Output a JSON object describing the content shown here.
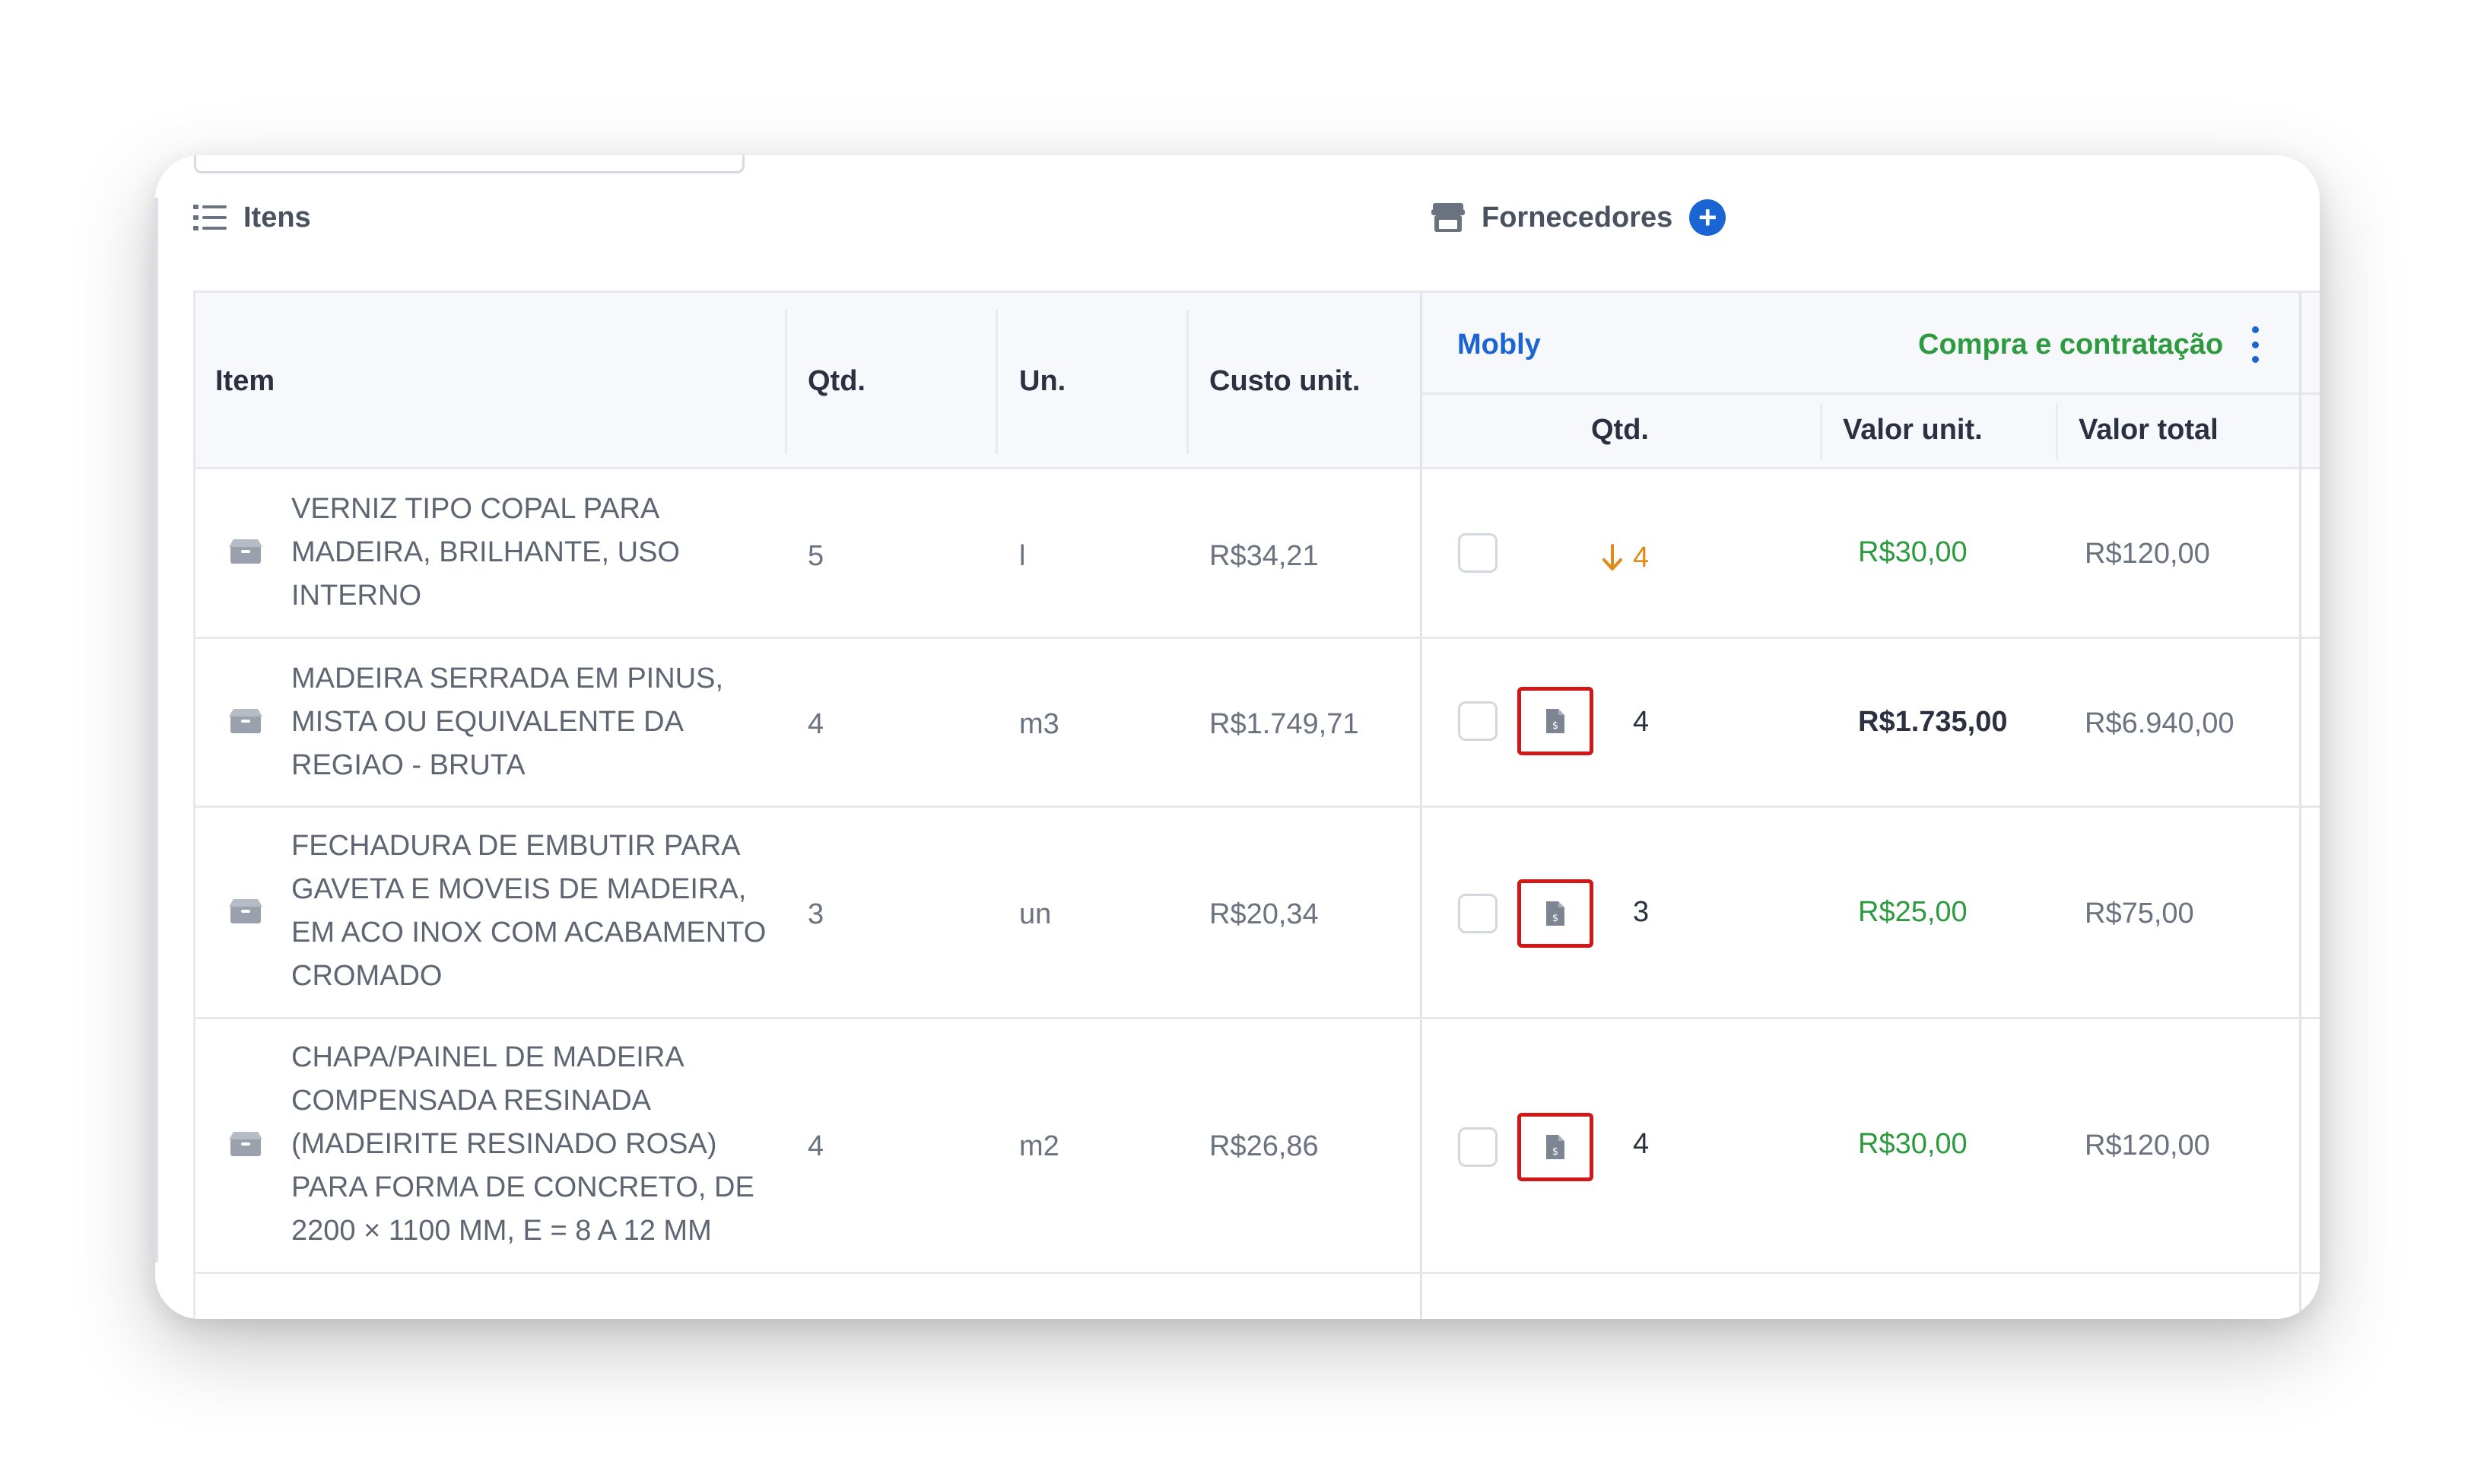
{
  "sections": {
    "items_title": "Itens",
    "suppliers_title": "Fornecedores"
  },
  "table": {
    "headers": {
      "item": "Item",
      "qty": "Qtd.",
      "unit": "Un.",
      "unit_cost": "Custo unit."
    },
    "supplier": {
      "name": "Mobly",
      "status": "Compra e contratação",
      "headers": {
        "qty": "Qtd.",
        "unit_value": "Valor unit.",
        "total_value": "Valor total"
      }
    },
    "rows": [
      {
        "desc_lines": [
          "VERNIZ TIPO COPAL PARA",
          "MADEIRA, BRILHANTE, USO",
          "INTERNO"
        ],
        "qty": "5",
        "unit": "l",
        "unit_cost": "R$34,21",
        "supplier_qty": "4",
        "supplier_qty_warning": true,
        "supplier_unit_value": "R$30,00",
        "supplier_total": "R$120,00",
        "has_doc": false
      },
      {
        "desc_lines": [
          "MADEIRA SERRADA EM PINUS,",
          "MISTA OU EQUIVALENTE DA",
          "REGIAO - BRUTA"
        ],
        "qty": "4",
        "unit": "m3",
        "unit_cost": "R$1.749,71",
        "supplier_qty": "4",
        "supplier_qty_warning": false,
        "supplier_unit_value": "R$1.735,00",
        "supplier_total": "R$6.940,00",
        "has_doc": true
      },
      {
        "desc_lines": [
          "FECHADURA DE EMBUTIR PARA",
          "GAVETA E MOVEIS DE MADEIRA,",
          "EM ACO INOX COM ACABAMENTO",
          "CROMADO"
        ],
        "qty": "3",
        "unit": "un",
        "unit_cost": "R$20,34",
        "supplier_qty": "3",
        "supplier_qty_warning": false,
        "supplier_unit_value": "R$25,00",
        "supplier_total": "R$75,00",
        "has_doc": true
      },
      {
        "desc_lines": [
          "CHAPA/PAINEL DE MADEIRA",
          "COMPENSADA RESINADA",
          "(MADEIRITE RESINADO ROSA)",
          "PARA FORMA DE CONCRETO, DE",
          "2200 × 1100 MM, E = 8 A 12 MM"
        ],
        "qty": "4",
        "unit": "m2",
        "unit_cost": "R$26,86",
        "supplier_qty": "4",
        "supplier_qty_warning": false,
        "supplier_unit_value": "R$30,00",
        "supplier_total": "R$120,00",
        "has_doc": true
      }
    ]
  },
  "colors": {
    "accent_blue": "#1b64d4",
    "status_green": "#2e9a3f",
    "warning_orange": "#e08a17",
    "highlight_red": "#d01818"
  },
  "icons": {
    "items": "list-icon",
    "suppliers": "store-icon",
    "add": "plus-circle-icon",
    "row": "box-icon",
    "doc": "document-icon",
    "warning": "arrow-down-icon",
    "menu": "kebab-menu-icon"
  }
}
